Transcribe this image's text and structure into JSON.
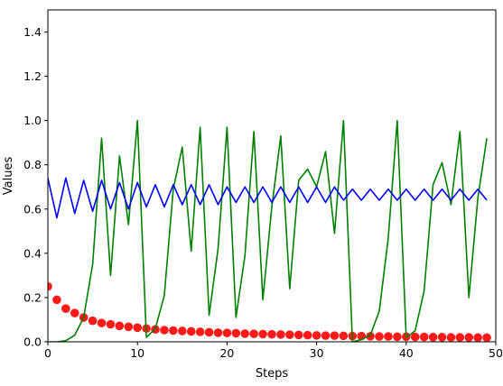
{
  "chart_data": {
    "type": "line",
    "title": "",
    "xlabel": "Steps",
    "ylabel": "Values",
    "xlim": [
      0,
      50
    ],
    "ylim": [
      0,
      1.5
    ],
    "xticks": [
      0,
      10,
      20,
      30,
      40,
      50
    ],
    "xtick_labels": [
      "0",
      "10",
      "20",
      "30",
      "40",
      "50"
    ],
    "yticks": [
      0.0,
      0.2,
      0.4,
      0.6,
      0.8,
      1.0,
      1.2,
      1.4
    ],
    "ytick_labels": [
      "0.0",
      "0.2",
      "0.4",
      "0.6",
      "0.8",
      "1.0",
      "1.2",
      "1.4"
    ],
    "grid": false,
    "legend": "none",
    "x": [
      0,
      1,
      2,
      3,
      4,
      5,
      6,
      7,
      8,
      9,
      10,
      11,
      12,
      13,
      14,
      15,
      16,
      17,
      18,
      19,
      20,
      21,
      22,
      23,
      24,
      25,
      26,
      27,
      28,
      29,
      30,
      31,
      32,
      33,
      34,
      35,
      36,
      37,
      38,
      39,
      40,
      41,
      42,
      43,
      44,
      45,
      46,
      47,
      48,
      49
    ],
    "series": [
      {
        "kind": "scatter",
        "color": "#ff0000",
        "values": [
          0.25,
          0.19,
          0.15,
          0.13,
          0.11,
          0.095,
          0.085,
          0.079,
          0.072,
          0.068,
          0.064,
          0.06,
          0.056,
          0.053,
          0.051,
          0.049,
          0.047,
          0.045,
          0.043,
          0.041,
          0.04,
          0.039,
          0.037,
          0.036,
          0.035,
          0.034,
          0.033,
          0.032,
          0.031,
          0.03,
          0.029,
          0.028,
          0.028,
          0.027,
          0.026,
          0.026,
          0.025,
          0.024,
          0.024,
          0.023,
          0.023,
          0.022,
          0.022,
          0.021,
          0.021,
          0.02,
          0.02,
          0.02,
          0.019,
          0.019
        ]
      },
      {
        "kind": "line",
        "color": "#008000",
        "values": [
          0.0,
          0.0,
          0.005,
          0.03,
          0.11,
          0.35,
          0.92,
          0.3,
          0.84,
          0.53,
          1.0,
          0.02,
          0.06,
          0.21,
          0.69,
          0.88,
          0.41,
          0.97,
          0.12,
          0.42,
          0.97,
          0.11,
          0.39,
          0.95,
          0.19,
          0.61,
          0.93,
          0.24,
          0.73,
          0.78,
          0.7,
          0.86,
          0.49,
          1.0,
          0.0,
          0.01,
          0.03,
          0.14,
          0.47,
          1.0,
          0.02,
          0.05,
          0.23,
          0.71,
          0.81,
          0.62,
          0.95,
          0.2,
          0.65,
          0.92
        ]
      },
      {
        "kind": "line",
        "color": "#0000ff",
        "values": [
          0.74,
          0.56,
          0.74,
          0.58,
          0.73,
          0.59,
          0.73,
          0.6,
          0.72,
          0.6,
          0.72,
          0.61,
          0.71,
          0.61,
          0.71,
          0.62,
          0.71,
          0.62,
          0.71,
          0.62,
          0.7,
          0.63,
          0.7,
          0.63,
          0.7,
          0.63,
          0.7,
          0.63,
          0.7,
          0.63,
          0.7,
          0.63,
          0.7,
          0.64,
          0.69,
          0.64,
          0.69,
          0.64,
          0.69,
          0.64,
          0.69,
          0.64,
          0.69,
          0.64,
          0.69,
          0.64,
          0.69,
          0.64,
          0.69,
          0.64
        ]
      }
    ]
  }
}
